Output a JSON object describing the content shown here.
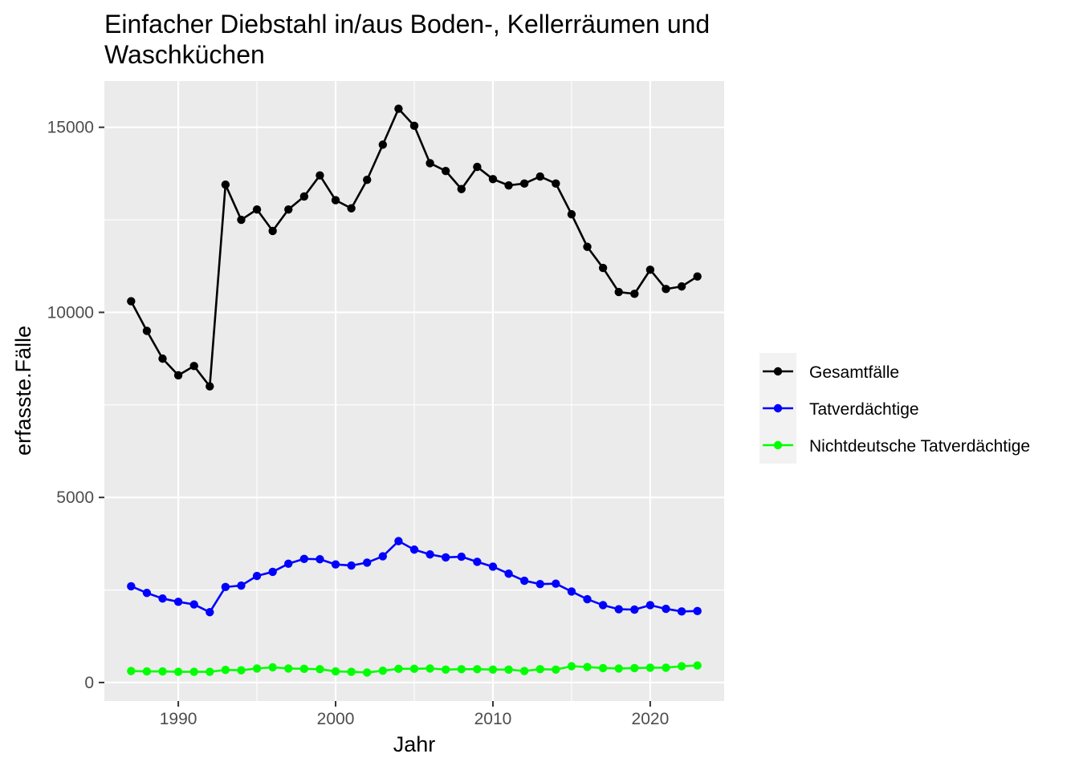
{
  "chart_data": {
    "type": "line",
    "title_line1": "Einfacher Diebstahl in/aus Boden-, Kellerräumen und",
    "title_line2": "Waschküchen",
    "xlabel": "Jahr",
    "ylabel": "erfasste.Fälle",
    "xlim": [
      1985.3,
      2024.7
    ],
    "ylim": [
      -500,
      16250
    ],
    "x_ticks": [
      1990,
      2000,
      2010,
      2020
    ],
    "x_tick_labels": [
      "1990",
      "2000",
      "2010",
      "2020"
    ],
    "y_ticks": [
      0,
      5000,
      10000,
      15000
    ],
    "y_tick_labels": [
      "0",
      "5000",
      "10000",
      "15000"
    ],
    "grid": true,
    "legend_position": "right",
    "x": [
      1987,
      1988,
      1989,
      1990,
      1991,
      1992,
      1993,
      1994,
      1995,
      1996,
      1997,
      1998,
      1999,
      2000,
      2001,
      2002,
      2003,
      2004,
      2005,
      2006,
      2007,
      2008,
      2009,
      2010,
      2011,
      2012,
      2013,
      2014,
      2015,
      2016,
      2017,
      2018,
      2019,
      2020,
      2021,
      2022,
      2023
    ],
    "series": [
      {
        "name": "Gesamtfälle",
        "color": "#000000",
        "values": [
          10300,
          9500,
          8750,
          8300,
          8550,
          8000,
          13450,
          12500,
          12780,
          12200,
          12780,
          13130,
          13700,
          13030,
          12810,
          13580,
          14530,
          15500,
          15040,
          14030,
          13820,
          13330,
          13930,
          13600,
          13430,
          13480,
          13670,
          13480,
          12650,
          11770,
          11200,
          10550,
          10500,
          11150,
          10630,
          10700,
          10970
        ]
      },
      {
        "name": "Tatverdächtige",
        "color": "#0000ff",
        "values": [
          2600,
          2420,
          2270,
          2180,
          2110,
          1900,
          2580,
          2620,
          2880,
          2990,
          3210,
          3340,
          3330,
          3190,
          3160,
          3240,
          3410,
          3820,
          3590,
          3460,
          3380,
          3400,
          3260,
          3130,
          2940,
          2750,
          2660,
          2670,
          2460,
          2250,
          2090,
          1980,
          1970,
          2090,
          1990,
          1920,
          1930
        ]
      },
      {
        "name": "Nichtdeutsche Tatverdächtige",
        "color": "#00ff00",
        "values": [
          310,
          300,
          300,
          290,
          290,
          290,
          340,
          330,
          380,
          410,
          380,
          370,
          360,
          300,
          290,
          270,
          320,
          370,
          370,
          380,
          350,
          360,
          360,
          350,
          350,
          310,
          360,
          350,
          440,
          420,
          390,
          380,
          390,
          400,
          400,
          440,
          460
        ]
      }
    ]
  }
}
